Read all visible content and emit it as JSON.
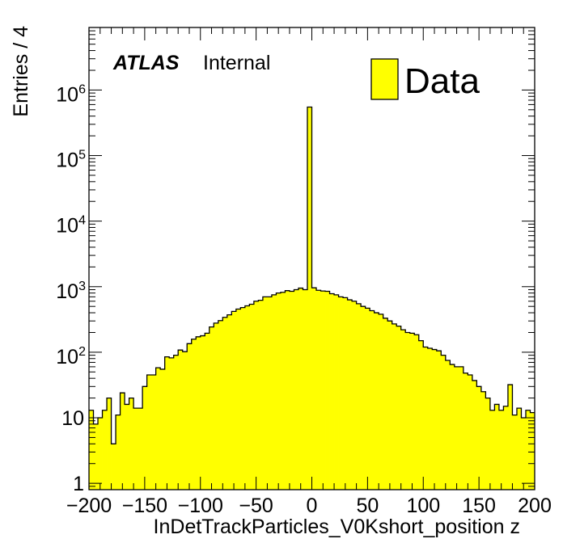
{
  "chart_data": {
    "type": "bar",
    "xlabel": "InDetTrackParticles_V0Kshort_position z",
    "ylabel": "Entries / 4",
    "xlim": [
      -200,
      200
    ],
    "ylim": [
      0.8,
      9000000
    ],
    "log_y": true,
    "bin_width": 4,
    "x_ticks": [
      "−200",
      "−150",
      "−100",
      "−50",
      "0",
      "50",
      "100",
      "150",
      "200"
    ],
    "y_ticks": [
      {
        "base": "1",
        "exp": ""
      },
      {
        "base": "10",
        "exp": ""
      },
      {
        "base": "10",
        "exp": "2"
      },
      {
        "base": "10",
        "exp": "3"
      },
      {
        "base": "10",
        "exp": "4"
      },
      {
        "base": "10",
        "exp": "5"
      },
      {
        "base": "10",
        "exp": "6"
      }
    ],
    "experiment_label": "ATLAS",
    "status_label": "Internal",
    "legend": {
      "label": "Data",
      "position": "top-right"
    },
    "fill_color": "#ffff00",
    "line_color": "#000000",
    "x": [
      -198,
      -194,
      -190,
      -186,
      -182,
      -178,
      -174,
      -170,
      -166,
      -162,
      -158,
      -154,
      -150,
      -146,
      -142,
      -138,
      -134,
      -130,
      -126,
      -122,
      -118,
      -114,
      -110,
      -106,
      -102,
      -98,
      -94,
      -90,
      -86,
      -82,
      -78,
      -74,
      -70,
      -66,
      -62,
      -58,
      -54,
      -50,
      -46,
      -42,
      -38,
      -34,
      -30,
      -26,
      -22,
      -18,
      -14,
      -10,
      -6,
      -2,
      2,
      6,
      10,
      14,
      18,
      22,
      26,
      30,
      34,
      38,
      42,
      46,
      50,
      54,
      58,
      62,
      66,
      70,
      74,
      78,
      82,
      86,
      90,
      94,
      98,
      102,
      106,
      110,
      114,
      118,
      122,
      126,
      130,
      134,
      138,
      142,
      146,
      150,
      154,
      158,
      162,
      166,
      170,
      174,
      178,
      182,
      186,
      190,
      194,
      198
    ],
    "values": [
      13,
      8,
      10,
      13,
      20,
      4,
      11,
      24,
      16,
      20,
      14,
      14,
      30,
      45,
      45,
      58,
      55,
      85,
      82,
      90,
      108,
      102,
      135,
      158,
      172,
      178,
      195,
      243,
      278,
      304,
      340,
      372,
      420,
      455,
      480,
      510,
      540,
      600,
      620,
      700,
      700,
      750,
      800,
      820,
      870,
      850,
      900,
      950,
      900,
      550000,
      960,
      880,
      860,
      850,
      780,
      750,
      700,
      680,
      630,
      600,
      550,
      500,
      470,
      430,
      400,
      380,
      330,
      300,
      270,
      250,
      220,
      200,
      195,
      185,
      150,
      120,
      115,
      110,
      105,
      90,
      75,
      65,
      60,
      60,
      48,
      45,
      37,
      30,
      25,
      20,
      13,
      16,
      13,
      15,
      32,
      11,
      14,
      10,
      13,
      12
    ]
  }
}
